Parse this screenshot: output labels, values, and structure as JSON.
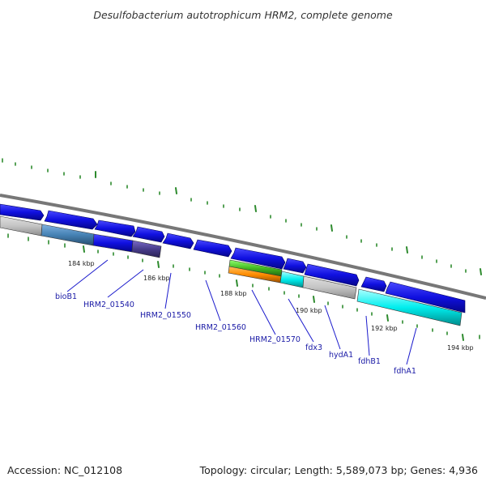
{
  "title": "Desulfobacterium autotrophicum HRM2, complete genome",
  "footer": {
    "accession": "Accession: NC_012108",
    "summary": "Topology: circular; Length: 5,589,073 bp; Genes: 4,936"
  },
  "colors": {
    "backbone": "#777777",
    "tick_major": "#2d8a2d",
    "tick_minor": "#3a8a3a",
    "cds_forward": "#1010e0",
    "label_text": "#1a1aa6",
    "leader": "#1a1acc"
  },
  "ruler": {
    "ticks_kbp": [
      "184 kbp",
      "186 kbp",
      "188 kbp",
      "190 kbp",
      "192 kbp",
      "194 kbp"
    ]
  },
  "gene_labels": [
    "bioB1",
    "HRM2_01540",
    "HRM2_01550",
    "HRM2_01560",
    "HRM2_01570",
    "fdx3",
    "hydA1",
    "fdhB1",
    "fdhA1"
  ]
}
